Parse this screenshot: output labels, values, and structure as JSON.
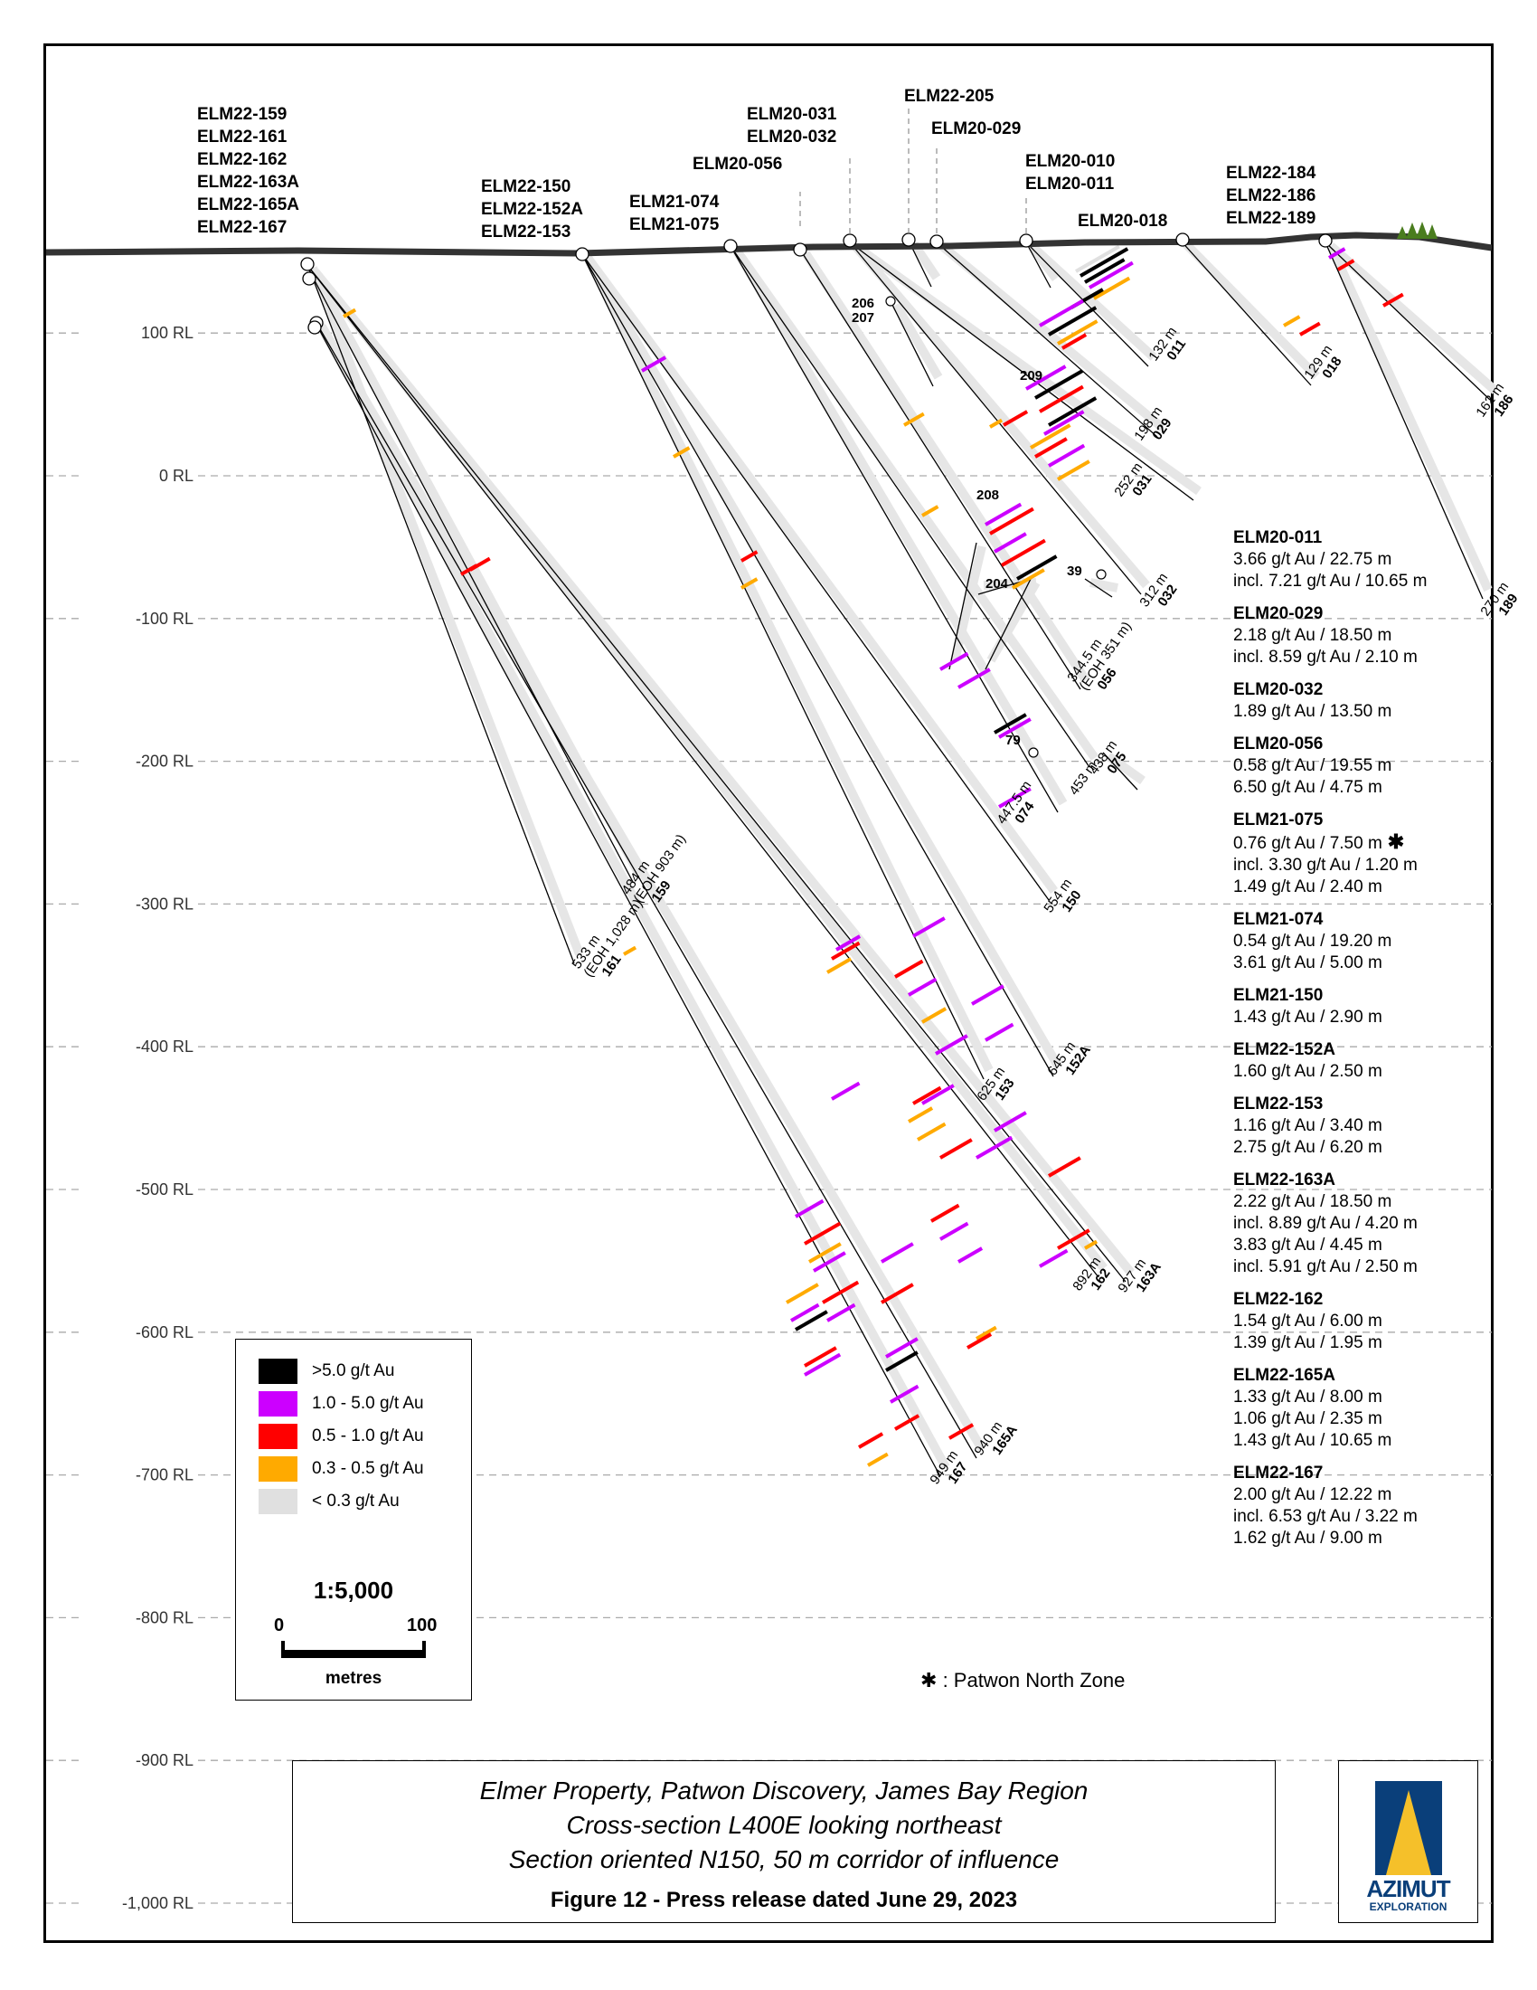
{
  "figure": {
    "title_lines": [
      "Elmer Property, Patwon Discovery, James Bay Region",
      "Cross-section L400E looking northeast",
      "Section oriented N150, 50 m corridor of influence"
    ],
    "caption": "Figure 12 - Press release dated June 29, 2023",
    "logo": {
      "name": "AZIMUT",
      "sub": "EXPLORATION",
      "colors": {
        "blue": "#0a3f7a",
        "yellow": "#f5c02a"
      }
    }
  },
  "axis": {
    "unit_suffix": "RL",
    "levels": [
      "100 RL",
      "0 RL",
      "-100 RL",
      "-200 RL",
      "-300 RL",
      "-400 RL",
      "-500 RL",
      "-600 RL",
      "-700 RL",
      "-800 RL",
      "-900 RL",
      "-1,000 RL"
    ],
    "level_values": [
      100,
      0,
      -100,
      -200,
      -300,
      -400,
      -500,
      -600,
      -700,
      -800,
      -900,
      -1000
    ]
  },
  "collar_groups": [
    {
      "labels": [
        "ELM22-159",
        "ELM22-161",
        "ELM22-162",
        "ELM22-163A",
        "ELM22-165A",
        "ELM22-167"
      ]
    },
    {
      "labels": [
        "ELM22-150",
        "ELM22-152A",
        "ELM22-153"
      ]
    },
    {
      "labels": [
        "ELM21-074",
        "ELM21-075"
      ]
    },
    {
      "labels": [
        "ELM20-056"
      ]
    },
    {
      "labels": [
        "ELM20-031",
        "ELM20-032"
      ]
    },
    {
      "labels": [
        "ELM22-205"
      ]
    },
    {
      "labels": [
        "ELM20-029"
      ]
    },
    {
      "labels": [
        "ELM20-010",
        "ELM20-011"
      ]
    },
    {
      "labels": [
        "ELM20-018"
      ]
    },
    {
      "labels": [
        "ELM22-184",
        "ELM22-186",
        "ELM22-189"
      ]
    }
  ],
  "hole_ends": [
    {
      "depth": "132 m",
      "id": "011"
    },
    {
      "depth": "129 m",
      "id": "018"
    },
    {
      "depth": "162 m",
      "id": "186"
    },
    {
      "depth": "198 m",
      "id": "029"
    },
    {
      "depth": "252 m",
      "id": "031"
    },
    {
      "depth": "312 m",
      "id": "032"
    },
    {
      "depth": "270 m",
      "id": "189"
    },
    {
      "depth": "344.5 m",
      "note": "(EOH 351 m)",
      "id": "056"
    },
    {
      "depth": "438 m",
      "id": "075"
    },
    {
      "depth": "453 m",
      "id": ""
    },
    {
      "depth": "447.5 m",
      "id": "074"
    },
    {
      "depth": "554 m",
      "id": "150"
    },
    {
      "depth": "625 m",
      "id": "153"
    },
    {
      "depth": "645 m",
      "id": "152A"
    },
    {
      "depth": "484 m",
      "note": "(EOH 903 m)",
      "id": "159"
    },
    {
      "depth": "533 m",
      "note": "(EOH 1,028 m)",
      "id": "161"
    },
    {
      "depth": "892 m",
      "id": "162"
    },
    {
      "depth": "927 m",
      "id": "163A"
    },
    {
      "depth": "940 m",
      "id": "165A"
    },
    {
      "depth": "949 m",
      "id": "167"
    }
  ],
  "off_section_holes": [
    "206",
    "207",
    "209",
    "208",
    "204",
    "39",
    "79"
  ],
  "results": [
    {
      "hole": "ELM20-011",
      "lines": [
        "3.66 g/t Au / 22.75 m",
        "incl. 7.21 g/t Au / 10.65 m"
      ]
    },
    {
      "hole": "ELM20-029",
      "lines": [
        "2.18 g/t Au / 18.50 m",
        "incl. 8.59 g/t Au / 2.10 m"
      ]
    },
    {
      "hole": "ELM20-032",
      "lines": [
        "1.89 g/t Au / 13.50 m"
      ]
    },
    {
      "hole": "ELM20-056",
      "lines": [
        "0.58 g/t Au / 19.55 m",
        "6.50 g/t Au / 4.75 m"
      ]
    },
    {
      "hole": "ELM21-075",
      "lines": [
        "0.76 g/t Au / 7.50 m",
        "incl. 3.30 g/t Au / 1.20 m",
        "1.49 g/t Au / 2.40 m"
      ],
      "patwon_north": true
    },
    {
      "hole": "ELM21-074",
      "lines": [
        "0.54 g/t Au / 19.20 m",
        "3.61 g/t Au / 5.00 m"
      ]
    },
    {
      "hole": "ELM21-150",
      "lines": [
        "1.43 g/t Au / 2.90 m"
      ]
    },
    {
      "hole": "ELM22-152A",
      "lines": [
        "1.60 g/t Au / 2.50 m"
      ]
    },
    {
      "hole": "ELM22-153",
      "lines": [
        "1.16 g/t Au / 3.40 m",
        "2.75 g/t Au / 6.20 m"
      ]
    },
    {
      "hole": "ELM22-163A",
      "lines": [
        "2.22 g/t Au / 18.50 m",
        "incl. 8.89 g/t Au / 4.20 m",
        "3.83 g/t Au / 4.45 m",
        "incl. 5.91 g/t Au / 2.50 m"
      ]
    },
    {
      "hole": "ELM22-162",
      "lines": [
        "1.54 g/t Au / 6.00 m",
        "1.39 g/t Au / 1.95 m"
      ]
    },
    {
      "hole": "ELM22-165A",
      "lines": [
        "1.33 g/t Au / 8.00 m",
        "1.06 g/t Au / 2.35 m",
        "1.43 g/t Au / 10.65 m"
      ]
    },
    {
      "hole": "ELM22-167",
      "lines": [
        "2.00 g/t Au / 12.22 m",
        "incl. 6.53 g/t Au / 3.22 m",
        "1.62 g/t Au / 9.00 m"
      ]
    }
  ],
  "legend": {
    "items": [
      {
        "label": ">5.0 g/t Au",
        "color": "#000000"
      },
      {
        "label": "1.0 - 5.0 g/t Au",
        "color": "#cc00ff"
      },
      {
        "label": "0.5 - 1.0 g/t Au",
        "color": "#ff0000"
      },
      {
        "label": "0.3 - 0.5 g/t Au",
        "color": "#ffaa00"
      },
      {
        "label": "< 0.3 g/t Au",
        "color": "#e0e0e0"
      }
    ],
    "scale": {
      "ratio": "1:5,000",
      "start": "0",
      "end": "100",
      "unit": "metres"
    }
  },
  "patwon_note": {
    "symbol": "✱",
    "text": ": Patwon North Zone"
  },
  "star_symbol": "✱"
}
